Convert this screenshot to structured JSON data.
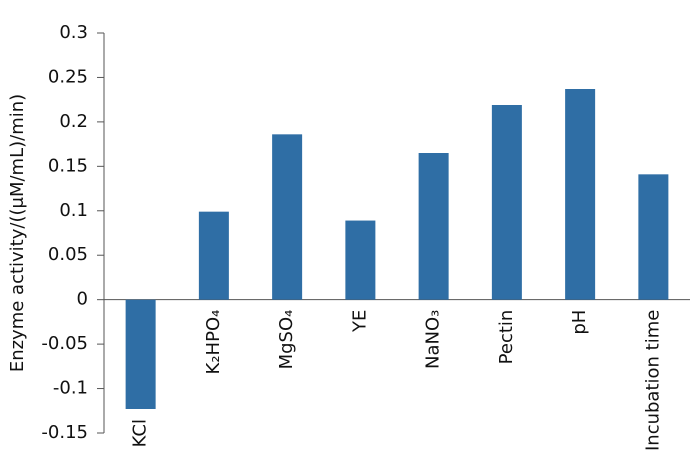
{
  "chart_data": {
    "type": "bar",
    "y_label": "Enzyme activity/((μM/mL)/min)",
    "categories": [
      "KCl",
      "K₂HPO₄",
      "MgSO₄",
      "YE",
      "NaNO₃",
      "Pectin",
      "pH",
      "Incubation time"
    ],
    "values": [
      -0.123,
      0.099,
      0.186,
      0.089,
      0.165,
      0.219,
      0.237,
      0.141
    ],
    "color": "#2f6ea5",
    "ylim": [
      -0.15,
      0.3
    ],
    "yticks": [
      -0.15,
      -0.1,
      -0.05,
      0,
      0.05,
      0.1,
      0.15,
      0.2,
      0.25,
      0.3
    ],
    "grid": false
  }
}
